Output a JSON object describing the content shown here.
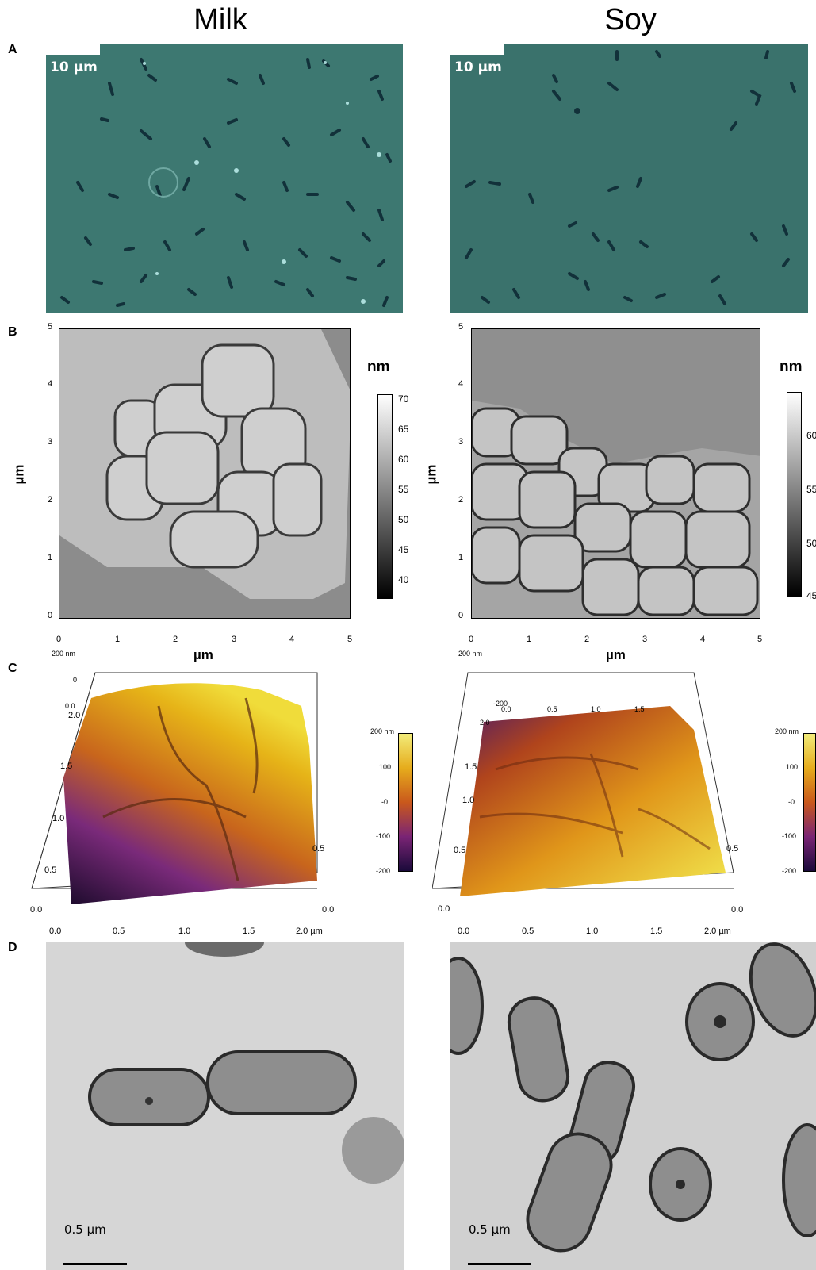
{
  "columns": {
    "left": "Milk",
    "right": "Soy"
  },
  "rows": {
    "a": "A",
    "b": "B",
    "c": "C",
    "d": "D"
  },
  "panel_a": {
    "scale_left": "10 µm",
    "scale_right": "10 µm"
  },
  "panel_b": {
    "axis_ticks": [
      "0",
      "1",
      "2",
      "3",
      "4",
      "5"
    ],
    "x_label": "µm",
    "y_label": "µm",
    "colorbar_unit": "nm",
    "left_colorbar_ticks": [
      "70",
      "65",
      "60",
      "55",
      "50",
      "45",
      "40"
    ],
    "right_colorbar_ticks": [
      "60",
      "55",
      "50",
      "45"
    ]
  },
  "panel_c": {
    "z_top": "200 nm",
    "x_ticks": [
      "0.0",
      "0.5",
      "1.0",
      "1.5",
      "2.0 µm"
    ],
    "y_ticks": [
      "0.5",
      "1.0",
      "1.5",
      "2.0"
    ],
    "side_ticks": [
      "0.5",
      "0.0"
    ],
    "back_ticks_left": [
      "0",
      "0.0"
    ],
    "back_ticks_right": [
      "-200",
      "0.0",
      "0.5",
      "1.0",
      "1.5",
      "2.0"
    ],
    "colorbar_top": "200 nm",
    "colorbar_ticks": [
      "100",
      "-0",
      "-100",
      "-200"
    ]
  },
  "panel_d": {
    "scale_left": "0.5 µm",
    "scale_right": "0.5 µm"
  }
}
